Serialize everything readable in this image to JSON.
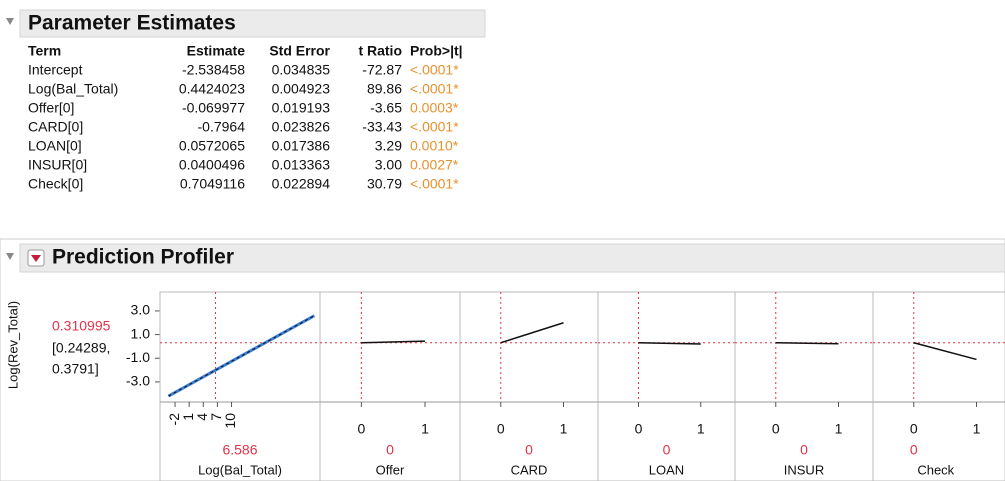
{
  "estimates": {
    "title": "Parameter Estimates",
    "columns": [
      "Term",
      "Estimate",
      "Std Error",
      "t Ratio",
      "Prob>|t|"
    ],
    "rows": [
      [
        "Intercept",
        "-2.538458",
        "0.034835",
        "-72.87",
        "<.0001*"
      ],
      [
        "Log(Bal_Total)",
        "0.4424023",
        "0.004923",
        "89.86",
        "<.0001*"
      ],
      [
        "Offer[0]",
        "-0.069977",
        "0.019193",
        "-3.65",
        "0.0003*"
      ],
      [
        "CARD[0]",
        "-0.7964",
        "0.023826",
        "-33.43",
        "<.0001*"
      ],
      [
        "LOAN[0]",
        "0.0572065",
        "0.017386",
        "3.29",
        "0.0010*"
      ],
      [
        "INSUR[0]",
        "0.0400496",
        "0.013363",
        "3.00",
        "0.0027*"
      ],
      [
        "Check[0]",
        "0.7049116",
        "0.022894",
        "30.79",
        "<.0001*"
      ]
    ]
  },
  "profiler": {
    "title": "Prediction Profiler",
    "y_label": "Log(Rev_Total)",
    "y_value": "0.310995",
    "y_ci_lower": "[0.24289,",
    "y_ci_upper": "0.3791]",
    "y_current": 0.310995,
    "ylim": [
      -4.7,
      4.6
    ],
    "yticks": [
      {
        "value": 3,
        "label": "3.0"
      },
      {
        "value": 1,
        "label": "1.0"
      },
      {
        "value": -1,
        "label": "-1.0"
      },
      {
        "value": -3,
        "label": "-3.0"
      }
    ],
    "panels": [
      {
        "factor": "Log(Bal_Total)",
        "current": 6.586,
        "xlim": [
          -5.2,
          28.8
        ],
        "xticks": [
          -2,
          1,
          4,
          7,
          10
        ],
        "x": [
          -3.4,
          27.6
        ],
        "y": [
          -4.2,
          2.6
        ]
      },
      {
        "factor": "Offer",
        "current": 0,
        "xlim": [
          -0.65,
          1.55
        ],
        "xticks": [
          0,
          1
        ],
        "x": [
          0,
          1
        ],
        "y": [
          0.31,
          0.45
        ]
      },
      {
        "factor": "CARD",
        "current": 0,
        "xlim": [
          -0.65,
          1.55
        ],
        "xticks": [
          0,
          1
        ],
        "x": [
          0,
          1
        ],
        "y": [
          0.31,
          2.0
        ]
      },
      {
        "factor": "LOAN",
        "current": 0,
        "xlim": [
          -0.65,
          1.55
        ],
        "xticks": [
          0,
          1
        ],
        "x": [
          0,
          1
        ],
        "y": [
          0.31,
          0.2
        ]
      },
      {
        "factor": "INSUR",
        "current": 0,
        "xlim": [
          -0.65,
          1.55
        ],
        "xticks": [
          0,
          1
        ],
        "x": [
          0,
          1
        ],
        "y": [
          0.31,
          0.23
        ]
      },
      {
        "factor": "Check",
        "current": 0,
        "xlim": [
          -0.65,
          1.55
        ],
        "xticks": [
          0,
          1
        ],
        "x": [
          0,
          1
        ],
        "y": [
          0.31,
          -1.1
        ]
      }
    ]
  }
}
